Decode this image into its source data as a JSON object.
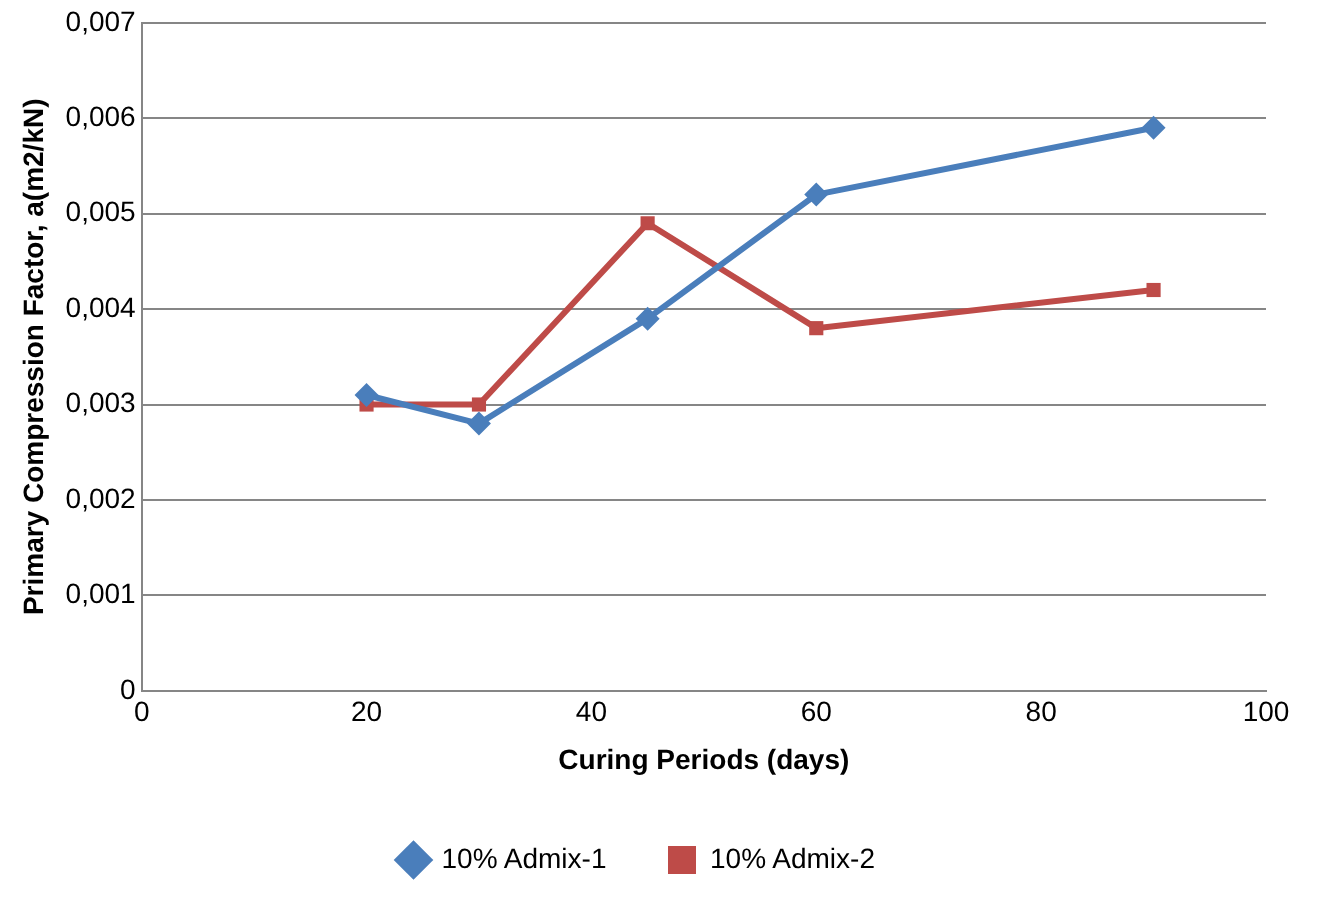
{
  "chart_data": {
    "type": "line",
    "xlabel": "Curing Periods (days)",
    "ylabel": "Primary Compression Factor, a(m2/kN)",
    "x": [
      20,
      30,
      45,
      60,
      90
    ],
    "series": [
      {
        "name": "10% Admix-1",
        "color": "#4a7ebb",
        "marker": "diamond",
        "values": [
          0.0031,
          0.0028,
          0.0039,
          0.0052,
          0.0059
        ]
      },
      {
        "name": "10% Admix-2",
        "color": "#be4b48",
        "marker": "square",
        "values": [
          0.003,
          0.003,
          0.0049,
          0.0038,
          0.0042
        ]
      }
    ],
    "xlim": [
      0,
      100
    ],
    "xticks": [
      0,
      20,
      40,
      60,
      80,
      100
    ],
    "ylim": [
      0,
      0.007
    ],
    "yticks": [
      0,
      {
        "value": 0.001,
        "label": "0,001"
      },
      {
        "value": 0.002,
        "label": "0,002"
      },
      {
        "value": 0.003,
        "label": "0,003"
      },
      {
        "value": 0.004,
        "label": "0,004"
      },
      {
        "value": 0.005,
        "label": "0,005"
      },
      {
        "value": 0.006,
        "label": "0,006"
      },
      {
        "value": 0.007,
        "label": "0,007"
      }
    ],
    "grid": "y",
    "legend": "bottom"
  }
}
